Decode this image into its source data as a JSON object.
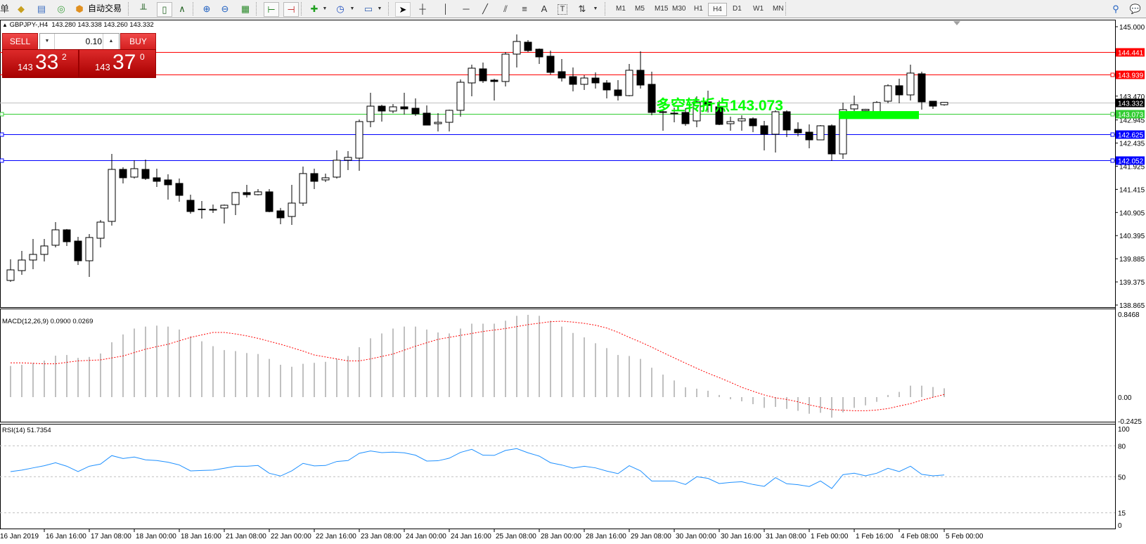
{
  "toolbar": {
    "menu_fragment": "单",
    "auto_trading_label": "自动交易",
    "timeframes": [
      "M1",
      "M5",
      "M15",
      "M30",
      "H1",
      "H4",
      "D1",
      "W1",
      "MN"
    ],
    "active_timeframe": "H4",
    "draw_tools": {
      "text_tool": "A",
      "text_label_tool": "T"
    }
  },
  "header": {
    "arrow": "▲",
    "symbol": "GBPJPY-,H4",
    "ohlc": "143.280 143.338 143.260 143.332"
  },
  "trade_panel": {
    "sell_label": "SELL",
    "buy_label": "BUY",
    "lot_value": "0.10",
    "sell_price": {
      "prefix": "143",
      "big": "33",
      "sup": "2"
    },
    "buy_price": {
      "prefix": "143",
      "big": "37",
      "sup": "0"
    },
    "color": "#d42020"
  },
  "annotation": {
    "text": "多空转折点143.073",
    "color": "#00ff00"
  },
  "indicators": {
    "macd_label": "MACD(12,26,9) 0.0900 0.0269",
    "rsi_label": "RSI(14) 51.7354"
  },
  "chart_data": {
    "type": "candlestick",
    "symbol": "GBPJPY",
    "timeframe": "H4",
    "price_axis": {
      "ylim": [
        138.865,
        145.0
      ],
      "ticks": [
        "145.000",
        "143.470",
        "142.945",
        "142.435",
        "141.925",
        "141.415",
        "140.905",
        "140.395",
        "139.885",
        "139.375",
        "138.865"
      ]
    },
    "levels": [
      {
        "price": "144.441",
        "color": "#ff0000",
        "label_color": "#ff0000",
        "text_color": "#ffffff"
      },
      {
        "price": "143.939",
        "color": "#ff0000",
        "label_color": "#ff0000",
        "text_color": "#ffffff"
      },
      {
        "price": "143.332",
        "color": "#c0c0c0",
        "label_color": "#000000",
        "text_color": "#ffffff"
      },
      {
        "price": "143.073",
        "color": "#32cd32",
        "label_color": "#32cd32",
        "text_color": "#ffffff"
      },
      {
        "price": "142.625",
        "color": "#0000ff",
        "label_color": "#0000ff",
        "text_color": "#ffffff"
      },
      {
        "price": "142.052",
        "color": "#0000ff",
        "label_color": "#0000ff",
        "text_color": "#ffffff"
      }
    ],
    "time_labels": [
      "16 Jan 2019",
      "16 Jan 16:00",
      "17 Jan 08:00",
      "18 Jan 00:00",
      "18 Jan 16:00",
      "21 Jan 08:00",
      "22 Jan 00:00",
      "22 Jan 16:00",
      "23 Jan 08:00",
      "24 Jan 00:00",
      "24 Jan 16:00",
      "25 Jan 08:00",
      "28 Jan 00:00",
      "28 Jan 16:00",
      "29 Jan 08:00",
      "30 Jan 00:00",
      "30 Jan 16:00",
      "31 Jan 08:00",
      "1 Feb 00:00",
      "1 Feb 16:00",
      "4 Feb 08:00",
      "5 Feb 00:00"
    ],
    "candles_ohlc": [
      [
        139.407,
        139.873,
        139.376,
        139.64
      ],
      [
        139.624,
        140.058,
        139.531,
        139.857
      ],
      [
        139.857,
        140.322,
        139.655,
        139.981
      ],
      [
        139.981,
        140.322,
        139.826,
        140.167
      ],
      [
        140.183,
        140.693,
        140.136,
        140.523
      ],
      [
        140.523,
        140.54,
        140.167,
        140.26
      ],
      [
        140.275,
        140.368,
        139.748,
        139.841
      ],
      [
        139.841,
        140.43,
        139.485,
        140.353
      ],
      [
        140.337,
        140.74,
        140.136,
        140.693
      ],
      [
        140.709,
        142.196,
        140.616,
        141.855
      ],
      [
        141.855,
        141.902,
        141.546,
        141.67
      ],
      [
        141.685,
        142.057,
        141.654,
        141.871
      ],
      [
        141.855,
        142.072,
        141.623,
        141.654
      ],
      [
        141.67,
        141.871,
        141.468,
        141.592
      ],
      [
        141.623,
        141.747,
        141.189,
        141.515
      ],
      [
        141.546,
        141.654,
        141.143,
        141.282
      ],
      [
        141.174,
        141.298,
        140.879,
        140.926
      ],
      [
        140.98,
        141.158,
        140.771,
        140.973
      ],
      [
        140.973,
        141.081,
        140.895,
        140.965
      ],
      [
        141.004,
        141.081,
        140.662,
        141.065
      ],
      [
        141.081,
        141.36,
        140.848,
        141.344
      ],
      [
        141.344,
        141.515,
        141.236,
        141.298
      ],
      [
        141.298,
        141.422,
        141.282,
        141.36
      ],
      [
        141.36,
        141.422,
        140.91,
        140.926
      ],
      [
        140.941,
        141.004,
        140.647,
        140.787
      ],
      [
        140.817,
        141.515,
        140.631,
        141.112
      ],
      [
        141.112,
        141.917,
        141.05,
        141.763
      ],
      [
        141.763,
        141.871,
        141.422,
        141.592
      ],
      [
        141.623,
        141.763,
        141.577,
        141.67
      ],
      [
        141.685,
        142.274,
        141.654,
        142.057
      ],
      [
        142.057,
        142.258,
        141.84,
        142.119
      ],
      [
        142.103,
        142.955,
        141.824,
        142.909
      ],
      [
        142.909,
        143.543,
        142.785,
        143.249
      ],
      [
        143.249,
        143.28,
        142.909,
        143.141
      ],
      [
        143.141,
        143.296,
        143.095,
        143.234
      ],
      [
        143.234,
        143.543,
        143.064,
        143.188
      ],
      [
        143.203,
        143.42,
        143.033,
        143.079
      ],
      [
        143.095,
        143.265,
        142.831,
        142.831
      ],
      [
        142.862,
        143.095,
        142.692,
        142.893
      ],
      [
        142.893,
        143.172,
        142.692,
        143.157
      ],
      [
        143.157,
        143.838,
        143.017,
        143.776
      ],
      [
        143.761,
        144.164,
        143.466,
        144.086
      ],
      [
        144.071,
        144.21,
        143.761,
        143.807
      ],
      [
        143.823,
        143.854,
        143.373,
        143.792
      ],
      [
        143.792,
        144.443,
        143.683,
        144.396
      ],
      [
        144.396,
        144.83,
        144.102,
        144.675
      ],
      [
        144.659,
        144.706,
        144.443,
        144.474
      ],
      [
        144.505,
        144.52,
        144.179,
        144.334
      ],
      [
        144.35,
        144.474,
        143.947,
        143.993
      ],
      [
        144.009,
        144.288,
        143.792,
        143.869
      ],
      [
        143.9,
        144.102,
        143.574,
        143.73
      ],
      [
        143.73,
        143.931,
        143.606,
        143.869
      ],
      [
        143.869,
        143.993,
        143.637,
        143.761
      ],
      [
        143.761,
        143.823,
        143.42,
        143.606
      ],
      [
        143.606,
        143.823,
        143.373,
        143.481
      ],
      [
        143.481,
        144.179,
        143.466,
        144.04
      ],
      [
        144.04,
        144.458,
        143.637,
        143.714
      ],
      [
        143.73,
        144.009,
        143.048,
        143.11
      ],
      [
        143.126,
        143.157,
        142.707,
        143.11
      ],
      [
        143.095,
        143.218,
        142.893,
        143.079
      ],
      [
        143.11,
        143.203,
        142.816,
        142.862
      ],
      [
        142.924,
        143.466,
        142.785,
        143.343
      ],
      [
        143.343,
        143.59,
        143.11,
        143.265
      ],
      [
        143.234,
        143.373,
        142.831,
        142.847
      ],
      [
        142.862,
        143.017,
        142.707,
        142.909
      ],
      [
        142.924,
        143.048,
        142.707,
        142.971
      ],
      [
        142.971,
        143.001,
        142.676,
        142.816
      ],
      [
        142.816,
        142.924,
        142.274,
        142.63
      ],
      [
        142.63,
        143.157,
        142.227,
        143.126
      ],
      [
        143.126,
        143.157,
        142.568,
        142.723
      ],
      [
        142.738,
        142.893,
        142.583,
        142.661
      ],
      [
        142.676,
        142.847,
        142.32,
        142.506
      ],
      [
        142.506,
        142.831,
        142.506,
        142.816
      ],
      [
        142.816,
        142.847,
        142.041,
        142.196
      ],
      [
        142.196,
        143.327,
        142.088,
        143.172
      ],
      [
        143.188,
        143.481,
        143.141,
        143.28
      ],
      [
        143.15,
        143.19,
        143.1,
        143.18
      ],
      [
        143.11,
        143.36,
        143.05,
        143.33
      ],
      [
        143.358,
        143.73,
        143.311,
        143.699
      ],
      [
        143.699,
        143.854,
        143.311,
        143.497
      ],
      [
        143.497,
        144.164,
        143.373,
        143.978
      ],
      [
        143.962,
        144.009,
        143.172,
        143.343
      ],
      [
        143.358,
        143.358,
        143.188,
        143.249
      ],
      [
        143.28,
        143.338,
        143.26,
        143.332
      ]
    ],
    "macd": {
      "ylim": [
        -0.2425,
        0.8468
      ],
      "tick_labels": [
        "0.8468",
        "0.00",
        "-0.2425"
      ],
      "histogram_color": "#c0c0c0",
      "signal_color": "#ff0000",
      "histogram": [
        0.318,
        0.33,
        0.35,
        0.373,
        0.423,
        0.43,
        0.4,
        0.41,
        0.445,
        0.56,
        0.64,
        0.7,
        0.72,
        0.73,
        0.72,
        0.69,
        0.62,
        0.57,
        0.52,
        0.48,
        0.47,
        0.45,
        0.44,
        0.39,
        0.33,
        0.31,
        0.34,
        0.35,
        0.36,
        0.39,
        0.42,
        0.51,
        0.6,
        0.65,
        0.7,
        0.72,
        0.72,
        0.69,
        0.66,
        0.65,
        0.7,
        0.75,
        0.75,
        0.75,
        0.78,
        0.83,
        0.84,
        0.83,
        0.78,
        0.72,
        0.655,
        0.61,
        0.55,
        0.5,
        0.43,
        0.42,
        0.39,
        0.3,
        0.23,
        0.17,
        0.1,
        0.086,
        0.065,
        0.022,
        -0.022,
        -0.043,
        -0.072,
        -0.11,
        -0.1,
        -0.12,
        -0.14,
        -0.17,
        -0.16,
        -0.21,
        -0.156,
        -0.11,
        -0.084,
        -0.048,
        0.022,
        0.053,
        0.117,
        0.117,
        0.103,
        0.09
      ],
      "signal": [
        0.35,
        0.35,
        0.345,
        0.34,
        0.34,
        0.355,
        0.37,
        0.375,
        0.38,
        0.4,
        0.42,
        0.455,
        0.49,
        0.515,
        0.54,
        0.575,
        0.61,
        0.635,
        0.66,
        0.66,
        0.645,
        0.625,
        0.6,
        0.57,
        0.54,
        0.505,
        0.47,
        0.43,
        0.41,
        0.39,
        0.37,
        0.37,
        0.39,
        0.415,
        0.44,
        0.48,
        0.52,
        0.555,
        0.59,
        0.61,
        0.63,
        0.65,
        0.67,
        0.685,
        0.7,
        0.72,
        0.74,
        0.755,
        0.77,
        0.775,
        0.766,
        0.753,
        0.734,
        0.705,
        0.662,
        0.61,
        0.562,
        0.51,
        0.454,
        0.4,
        0.347,
        0.294,
        0.244,
        0.199,
        0.151,
        0.1,
        0.06,
        0.022,
        -0.007,
        -0.024,
        -0.048,
        -0.079,
        -0.103,
        -0.127,
        -0.134,
        -0.139,
        -0.139,
        -0.132,
        -0.117,
        -0.091,
        -0.067,
        -0.031,
        -0.002,
        0.0269
      ]
    },
    "rsi": {
      "ylim": [
        0,
        100
      ],
      "tick_labels": [
        "100",
        "80",
        "50",
        "15",
        "0"
      ],
      "levels": [
        80,
        50,
        15
      ],
      "color": "#1e90ff",
      "values": [
        55,
        56.4,
        58.6,
        60.7,
        63.6,
        60.2,
        55,
        60.2,
        62.3,
        70.5,
        67.7,
        69.1,
        66.4,
        65.7,
        64.1,
        61.4,
        55.7,
        56.1,
        56.4,
        58.2,
        60.2,
        60.2,
        60.9,
        53.4,
        50.7,
        55.7,
        63,
        60.5,
        60.9,
        64.8,
        65.7,
        72.7,
        75,
        73.4,
        73.9,
        73.2,
        70.9,
        65.2,
        65.5,
        68,
        73.6,
        76.6,
        70.9,
        70.7,
        75.5,
        77.3,
        73.2,
        70,
        63.6,
        61.4,
        58.4,
        60.2,
        58.6,
        55.5,
        53,
        60.7,
        55.7,
        45.9,
        45.9,
        45.9,
        42.5,
        50,
        48.4,
        43.4,
        44.5,
        45.2,
        42.5,
        40.7,
        49.1,
        43.2,
        42.3,
        40.5,
        45.9,
        38.6,
        52,
        53.4,
        50.9,
        53.4,
        58.2,
        55,
        60.2,
        52.3,
        50.9,
        51.7354
      ]
    }
  }
}
